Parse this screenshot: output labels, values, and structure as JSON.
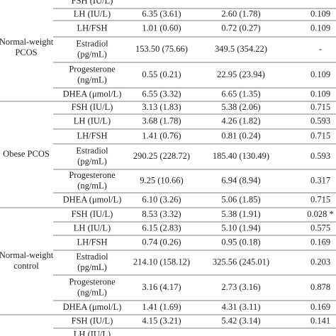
{
  "table": {
    "groups": [
      {
        "label": [
          "Normal-weight",
          "PCOS"
        ],
        "rows": [
          {
            "parameter": [
              "FSH (IU/L)"
            ]
          },
          {
            "parameter": [
              "LH (IU/L)"
            ],
            "col1": "6.35 (3.61)",
            "col2": "2.60 (1.78)",
            "p": "0.109"
          },
          {
            "parameter": [
              "LH/FSH"
            ],
            "col1": "1.01 (0.60)",
            "col2": "0.72 (0.27)",
            "p": "0.109"
          },
          {
            "parameter": [
              "Estradiol",
              "(pg/mL)"
            ],
            "col1": "153.50 (75.66)",
            "col2": "349.5 (354.22)",
            "p": "-"
          },
          {
            "parameter": [
              "Progesterone",
              "(ng/mL)"
            ],
            "col1": "0.55 (0.21)",
            "col2": "22.95 (23.94)",
            "p": "0.109"
          },
          {
            "parameter": [
              "DHEA (μmol/L)"
            ],
            "col1": "6.55 (3.32)",
            "col2": "6.65 (1.35)",
            "p": "0.109"
          }
        ]
      },
      {
        "label": [
          "Obese PCOS"
        ],
        "rows": [
          {
            "parameter": [
              "FSH (IU/L)"
            ],
            "col1": "3.13 (1.83)",
            "col2": "5.38 (2.06)",
            "p": "0.715"
          },
          {
            "parameter": [
              "LH (IU/L)"
            ],
            "col1": "3.68 (1.78)",
            "col2": "4.26 (1.82)",
            "p": "0.593"
          },
          {
            "parameter": [
              "LH/FSH"
            ],
            "col1": "1.41 (0.76)",
            "col2": "0.81 (0.24)",
            "p": "0.715"
          },
          {
            "parameter": [
              "Estradiol",
              "(pg/mL)"
            ],
            "col1": "290.25 (228.72)",
            "col2": "185.40 (130.49)",
            "p": "0.593"
          },
          {
            "parameter": [
              "Progesterone",
              "(ng/mL)"
            ],
            "col1": "9.25 (10.66)",
            "col2": "6.94 (8.94)",
            "p": "0.317"
          },
          {
            "parameter": [
              "DHEA (μmol/L)"
            ],
            "col1": "6.10 (3.26)",
            "col2": "5.06 (1.85)",
            "p": "0.715"
          }
        ]
      },
      {
        "label": [
          "Normal-weight",
          "control"
        ],
        "rows": [
          {
            "parameter": [
              "FSH (IU/L)"
            ],
            "col1": "8.53 (3.32)",
            "col2": "5.38 (1.91)",
            "p": "0.028 *"
          },
          {
            "parameter": [
              "LH (IU/L)"
            ],
            "col1": "6.15 (2.83)",
            "col2": "5.10 (1.94)",
            "p": "0.575"
          },
          {
            "parameter": [
              "LH/FSH"
            ],
            "col1": "0.74 (0.26)",
            "col2": "0.95 (0.18)",
            "p": "0.169"
          },
          {
            "parameter": [
              "Estradiol",
              "(pg/mL)"
            ],
            "col1": "214.10 (158.12)",
            "col2": "325.56 (245.01)",
            "p": "0.203"
          },
          {
            "parameter": [
              "Progesterone",
              "(ng/mL)"
            ],
            "col1": "3.16 (4.17)",
            "col2": "2.73 (3.16)",
            "p": "0.878"
          },
          {
            "parameter": [
              "DHEA (μmol/L)"
            ],
            "col1": "1.41 (1.69)",
            "col2": "4.31 (3.11)",
            "p": "0.169"
          }
        ]
      },
      {
        "rows": [
          {
            "parameter": [
              "FSH (IU/L)"
            ],
            "col1": "4.15 (3.21)",
            "col2": "5.42 (3.14)",
            "p": "0.141"
          },
          {
            "parameter": [
              "LH (IU/L)"
            ]
          }
        ]
      }
    ]
  }
}
